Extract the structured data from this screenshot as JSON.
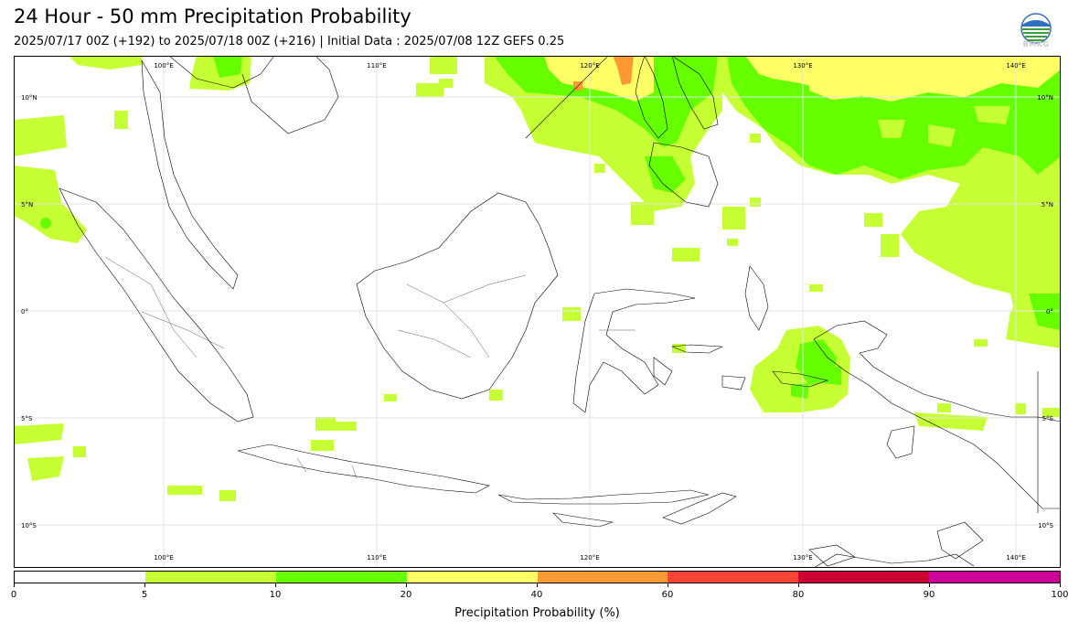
{
  "title": "24 Hour - 50 mm Precipitation Probability",
  "subtitle": "2025/07/17 00Z (+192) to 2025/07/18 00Z (+216) | Initial Data : 2025/07/08 12Z GEFS 0.25",
  "logo": {
    "text": "BMKG",
    "icon": "bmkg-logo"
  },
  "map": {
    "lon_labels": [
      "100°E",
      "110°E",
      "120°E",
      "130°E",
      "140°E"
    ],
    "lat_labels": [
      "10°N",
      "5°N",
      "0°",
      "5°S",
      "10°S"
    ],
    "extent": {
      "lon_min": 93,
      "lon_max": 142.2,
      "lat_min": -12,
      "lat_max": 12
    },
    "gridlines": true
  },
  "colorbar": {
    "title": "Precipitation Probability (%)",
    "ticks": [
      "0",
      "5",
      "10",
      "20",
      "40",
      "60",
      "80",
      "90",
      "100"
    ],
    "colors": [
      "#ffffff",
      "#c6ff33",
      "#66ff00",
      "#ffff66",
      "#ff9933",
      "#ff4433",
      "#cc0033",
      "#cc0099"
    ]
  }
}
